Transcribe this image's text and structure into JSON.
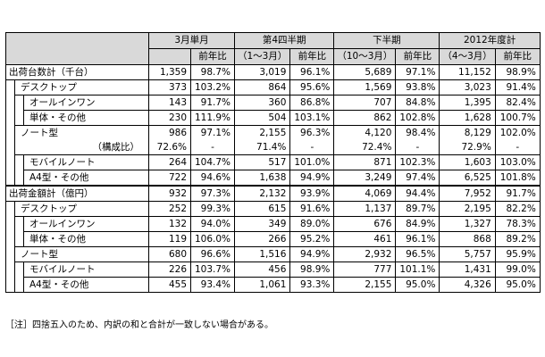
{
  "headers": {
    "g1": "3月単月",
    "g2": "第4四半期",
    "g3": "下半期",
    "g4": "2012年度計",
    "yoy": "前年比",
    "p2": "（1～3月）",
    "p3": "（10～3月）",
    "p4": "（4～3月）"
  },
  "rows": [
    {
      "label": "出荷台数計（千台）",
      "v": [
        "1,359",
        "98.7%",
        "3,019",
        "96.1%",
        "5,689",
        "97.1%",
        "11,152",
        "98.9%"
      ]
    },
    {
      "label": "デスクトップ",
      "v": [
        "373",
        "103.2%",
        "864",
        "95.6%",
        "1,569",
        "93.8%",
        "3,023",
        "91.4%"
      ]
    },
    {
      "label": "オールインワン",
      "v": [
        "143",
        "91.7%",
        "360",
        "86.8%",
        "707",
        "84.8%",
        "1,395",
        "82.4%"
      ]
    },
    {
      "label": "単体・その他",
      "v": [
        "230",
        "111.9%",
        "504",
        "103.1%",
        "862",
        "102.8%",
        "1,628",
        "100.7%"
      ]
    },
    {
      "label": "ノート型",
      "v": [
        "986",
        "97.1%",
        "2,155",
        "96.3%",
        "4,120",
        "98.4%",
        "8,129",
        "102.0%"
      ]
    },
    {
      "label": "（構成比）",
      "v": [
        "72.6%",
        "-",
        "71.4%",
        "-",
        "72.4%",
        "-",
        "72.9%",
        "-"
      ]
    },
    {
      "label": "モバイルノート",
      "v": [
        "264",
        "104.7%",
        "517",
        "101.0%",
        "871",
        "102.3%",
        "1,603",
        "103.0%"
      ]
    },
    {
      "label": "A4型・その他",
      "v": [
        "722",
        "94.6%",
        "1,638",
        "94.9%",
        "3,249",
        "97.4%",
        "6,525",
        "101.8%"
      ]
    },
    {
      "label": "出荷金額計（億円）",
      "v": [
        "932",
        "97.3%",
        "2,132",
        "93.9%",
        "4,069",
        "94.4%",
        "7,952",
        "91.7%"
      ]
    },
    {
      "label": "デスクトップ",
      "v": [
        "252",
        "99.3%",
        "615",
        "91.6%",
        "1,137",
        "89.7%",
        "2,195",
        "82.2%"
      ]
    },
    {
      "label": "オールインワン",
      "v": [
        "132",
        "94.0%",
        "349",
        "89.0%",
        "676",
        "84.9%",
        "1,327",
        "78.3%"
      ]
    },
    {
      "label": "単体・その他",
      "v": [
        "119",
        "106.0%",
        "266",
        "95.2%",
        "461",
        "96.1%",
        "868",
        "89.2%"
      ]
    },
    {
      "label": "ノート型",
      "v": [
        "680",
        "96.6%",
        "1,516",
        "94.9%",
        "2,932",
        "96.5%",
        "5,757",
        "95.9%"
      ]
    },
    {
      "label": "モバイルノート",
      "v": [
        "226",
        "103.7%",
        "456",
        "98.9%",
        "777",
        "101.1%",
        "1,431",
        "99.0%"
      ]
    },
    {
      "label": "A4型・その他",
      "v": [
        "455",
        "93.4%",
        "1,061",
        "93.3%",
        "2,155",
        "95.0%",
        "4,326",
        "95.0%"
      ]
    }
  ],
  "note": "［注］四捨五入のため、内訳の和と合計が一致しない場合がある。"
}
